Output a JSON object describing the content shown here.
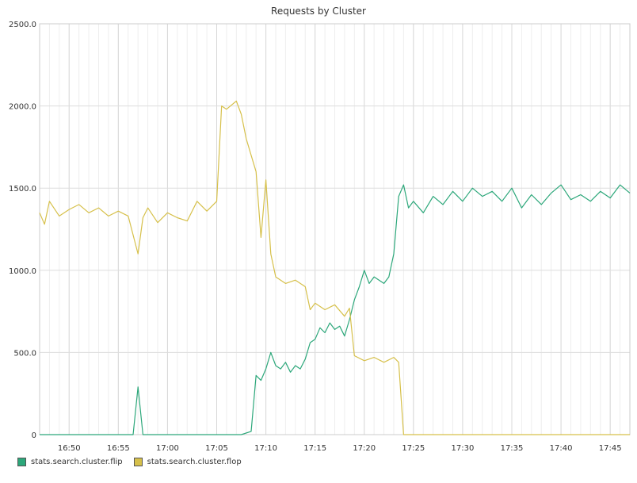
{
  "chart_data": {
    "type": "line",
    "title": "Requests by Cluster",
    "xlabel": "",
    "ylabel": "",
    "x_range": [
      "16:47",
      "17:47"
    ],
    "ylim": [
      0,
      2500
    ],
    "x_ticks": [
      "16:50",
      "16:55",
      "17:00",
      "17:05",
      "17:10",
      "17:15",
      "17:20",
      "17:25",
      "17:30",
      "17:35",
      "17:40",
      "17:45"
    ],
    "y_ticks": [
      "0",
      "500.0",
      "1000.0",
      "1500.0",
      "2000.0",
      "2500.0"
    ],
    "grid": true,
    "legend_position": "bottom-left",
    "series": [
      {
        "name": "stats.search.cluster.flip",
        "color": "#2ca77a",
        "points": [
          [
            "16:47",
            0
          ],
          [
            "16:50",
            0
          ],
          [
            "16:55",
            0
          ],
          [
            "16:56.5",
            0
          ],
          [
            "16:57",
            290
          ],
          [
            "16:57.5",
            0
          ],
          [
            "17:00",
            0
          ],
          [
            "17:05",
            0
          ],
          [
            "17:07.5",
            0
          ],
          [
            "17:08.5",
            20
          ],
          [
            "17:09",
            360
          ],
          [
            "17:09.5",
            330
          ],
          [
            "17:10",
            400
          ],
          [
            "17:10.5",
            500
          ],
          [
            "17:11",
            420
          ],
          [
            "17:11.5",
            400
          ],
          [
            "17:12",
            440
          ],
          [
            "17:12.5",
            380
          ],
          [
            "17:13",
            420
          ],
          [
            "17:13.5",
            400
          ],
          [
            "17:14",
            460
          ],
          [
            "17:14.5",
            560
          ],
          [
            "17:15",
            580
          ],
          [
            "17:15.5",
            650
          ],
          [
            "17:16",
            620
          ],
          [
            "17:16.5",
            680
          ],
          [
            "17:17",
            640
          ],
          [
            "17:17.5",
            660
          ],
          [
            "17:18",
            600
          ],
          [
            "17:18.5",
            700
          ],
          [
            "17:19",
            820
          ],
          [
            "17:19.5",
            900
          ],
          [
            "17:20",
            1000
          ],
          [
            "17:20.5",
            920
          ],
          [
            "17:21",
            960
          ],
          [
            "17:21.5",
            940
          ],
          [
            "17:22",
            920
          ],
          [
            "17:22.5",
            960
          ],
          [
            "17:23",
            1100
          ],
          [
            "17:23.5",
            1450
          ],
          [
            "17:24",
            1520
          ],
          [
            "17:24.5",
            1380
          ],
          [
            "17:25",
            1420
          ],
          [
            "17:26",
            1350
          ],
          [
            "17:27",
            1450
          ],
          [
            "17:28",
            1400
          ],
          [
            "17:29",
            1480
          ],
          [
            "17:30",
            1420
          ],
          [
            "17:31",
            1500
          ],
          [
            "17:32",
            1450
          ],
          [
            "17:33",
            1480
          ],
          [
            "17:34",
            1420
          ],
          [
            "17:35",
            1500
          ],
          [
            "17:36",
            1380
          ],
          [
            "17:37",
            1460
          ],
          [
            "17:38",
            1400
          ],
          [
            "17:39",
            1470
          ],
          [
            "17:40",
            1520
          ],
          [
            "17:41",
            1430
          ],
          [
            "17:42",
            1460
          ],
          [
            "17:43",
            1420
          ],
          [
            "17:44",
            1480
          ],
          [
            "17:45",
            1440
          ],
          [
            "17:46",
            1520
          ],
          [
            "17:47",
            1470
          ]
        ]
      },
      {
        "name": "stats.search.cluster.flop",
        "color": "#d6c04a",
        "points": [
          [
            "16:47",
            1350
          ],
          [
            "16:47.5",
            1280
          ],
          [
            "16:48",
            1420
          ],
          [
            "16:49",
            1330
          ],
          [
            "16:50",
            1370
          ],
          [
            "16:51",
            1400
          ],
          [
            "16:52",
            1350
          ],
          [
            "16:53",
            1380
          ],
          [
            "16:54",
            1330
          ],
          [
            "16:55",
            1360
          ],
          [
            "16:56",
            1330
          ],
          [
            "16:57",
            1100
          ],
          [
            "16:57.5",
            1320
          ],
          [
            "16:58",
            1380
          ],
          [
            "16:59",
            1290
          ],
          [
            "17:00",
            1350
          ],
          [
            "17:01",
            1320
          ],
          [
            "17:02",
            1300
          ],
          [
            "17:03",
            1420
          ],
          [
            "17:04",
            1360
          ],
          [
            "17:05",
            1420
          ],
          [
            "17:05.5",
            2000
          ],
          [
            "17:06",
            1980
          ],
          [
            "17:07",
            2030
          ],
          [
            "17:07.5",
            1950
          ],
          [
            "17:08",
            1800
          ],
          [
            "17:08.5",
            1700
          ],
          [
            "17:09",
            1600
          ],
          [
            "17:09.5",
            1200
          ],
          [
            "17:10",
            1550
          ],
          [
            "17:10.5",
            1100
          ],
          [
            "17:11",
            960
          ],
          [
            "17:12",
            920
          ],
          [
            "17:13",
            940
          ],
          [
            "17:14",
            900
          ],
          [
            "17:14.5",
            760
          ],
          [
            "17:15",
            800
          ],
          [
            "17:16",
            760
          ],
          [
            "17:17",
            790
          ],
          [
            "17:18",
            720
          ],
          [
            "17:18.5",
            770
          ],
          [
            "17:19",
            480
          ],
          [
            "17:20",
            450
          ],
          [
            "17:21",
            470
          ],
          [
            "17:22",
            440
          ],
          [
            "17:23",
            470
          ],
          [
            "17:23.5",
            440
          ],
          [
            "17:24",
            0
          ],
          [
            "17:30",
            0
          ],
          [
            "17:35",
            0
          ],
          [
            "17:40",
            0
          ],
          [
            "17:45",
            0
          ],
          [
            "17:47",
            0
          ]
        ]
      }
    ]
  },
  "legend": {
    "flip_label": "stats.search.cluster.flip",
    "flop_label": "stats.search.cluster.flop"
  }
}
